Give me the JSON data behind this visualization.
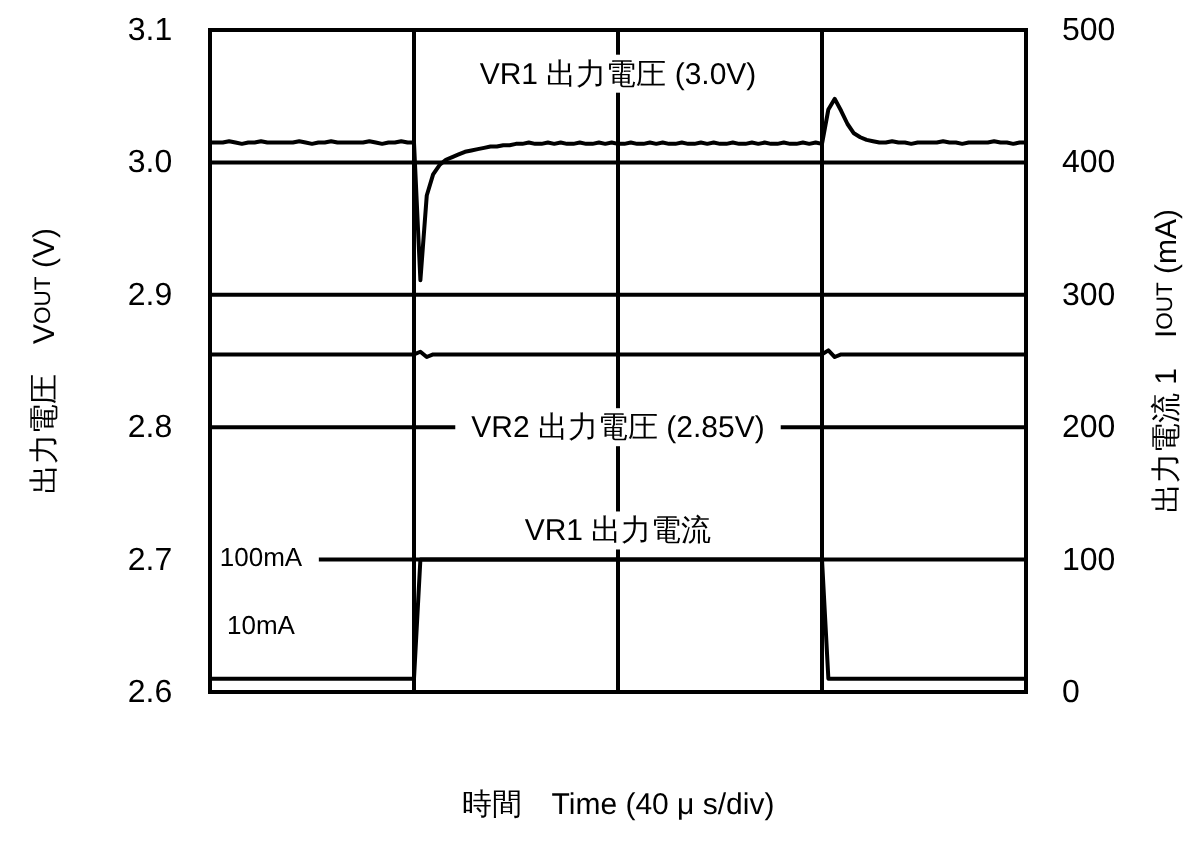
{
  "chart_data": {
    "type": "line",
    "xlabel": "時間　Time (40 μ s/div)",
    "ylabel": "出力電圧　V$_{OUT}$ (V)",
    "y2label": "出力電流 1　I$_{OUT}$ (mA)",
    "categories": [
      null,
      null,
      null,
      null,
      null,
      null,
      null,
      null,
      null,
      null,
      null,
      null,
      null,
      null,
      null,
      null,
      null,
      null,
      null,
      null,
      null,
      null,
      null,
      null,
      null,
      null,
      null,
      null,
      null,
      null,
      null,
      null,
      null,
      null,
      null,
      null,
      null,
      null,
      null,
      null,
      null,
      null,
      null,
      null,
      null,
      null,
      null,
      null,
      null,
      null,
      null,
      null,
      null,
      null,
      null,
      null,
      null,
      null,
      null,
      null,
      null,
      null,
      null,
      null,
      null,
      null,
      null,
      null,
      null,
      null,
      null,
      null,
      null,
      null,
      null,
      null,
      null,
      null,
      null,
      null,
      null,
      null,
      null,
      null,
      null,
      null,
      null,
      null,
      null,
      null,
      null,
      null,
      null,
      null,
      null,
      null,
      null,
      null,
      null,
      null,
      null,
      null,
      null,
      null,
      null,
      null,
      null,
      null,
      null,
      null,
      null,
      null,
      null,
      null,
      null,
      null,
      null,
      null,
      null,
      null,
      null,
      null,
      null,
      null,
      null,
      null,
      null,
      null,
      null
    ],
    "ylim": [
      2.6,
      3.1
    ],
    "yticks": [
      2.6,
      2.7,
      2.8,
      2.9,
      {
        "value": 3.0,
        "label": "3.0"
      },
      3.1
    ],
    "y2lim": [
      0,
      500
    ],
    "y2ticks": [
      0,
      100,
      200,
      300,
      400,
      500
    ],
    "grid": true,
    "annotations": [
      "VR1 出力電圧  (3.0V)",
      "VR2 出力電圧  (2.85V)",
      "VR1 出力電流",
      "100mA",
      "10mA"
    ],
    "series": [
      {
        "color": "#000000",
        "values": [
          3.015,
          3.015,
          3.015,
          3.016,
          3.015,
          3.014,
          3.015,
          3.015,
          3.016,
          3.015,
          3.015,
          3.015,
          3.015,
          3.015,
          3.016,
          3.015,
          3.014,
          3.015,
          3.015,
          3.016,
          3.015,
          3.015,
          3.015,
          3.015,
          3.015,
          3.016,
          3.015,
          3.014,
          3.015,
          3.015,
          3.016,
          3.015,
          3.015,
          2.911,
          2.975,
          2.991,
          2.998,
          3.002,
          3.004,
          3.006,
          3.008,
          3.009,
          3.01,
          3.011,
          3.012,
          3.012,
          3.013,
          3.013,
          3.014,
          3.014,
          3.015,
          3.014,
          3.014,
          3.015,
          3.014,
          3.015,
          3.014,
          3.014,
          3.015,
          3.014,
          3.014,
          3.015,
          3.014,
          3.015,
          3.014,
          3.014,
          3.015,
          3.014,
          3.014,
          3.015,
          3.014,
          3.015,
          3.014,
          3.014,
          3.015,
          3.014,
          3.014,
          3.015,
          3.014,
          3.015,
          3.014,
          3.014,
          3.015,
          3.014,
          3.014,
          3.015,
          3.014,
          3.015,
          3.014,
          3.014,
          3.015,
          3.014,
          3.014,
          3.015,
          3.014,
          3.015,
          3.014,
          3.04,
          3.048,
          3.039,
          3.029,
          3.022,
          3.019,
          3.017,
          3.016,
          3.015,
          3.015,
          3.016,
          3.015,
          3.015,
          3.014,
          3.015,
          3.015,
          3.015,
          3.015,
          3.016,
          3.015,
          3.015,
          3.014,
          3.015,
          3.015,
          3.015,
          3.015,
          3.016,
          3.015,
          3.015,
          3.014,
          3.015,
          3.015
        ]
      },
      {
        "color": "#000000",
        "values": [
          2.855,
          2.855,
          2.855,
          2.855,
          2.855,
          2.855,
          2.855,
          2.855,
          2.855,
          2.855,
          2.855,
          2.855,
          2.855,
          2.855,
          2.855,
          2.855,
          2.855,
          2.855,
          2.855,
          2.855,
          2.855,
          2.855,
          2.855,
          2.855,
          2.855,
          2.855,
          2.855,
          2.855,
          2.855,
          2.855,
          2.855,
          2.855,
          2.855,
          2.857,
          2.853,
          2.855,
          2.855,
          2.855,
          2.855,
          2.855,
          2.855,
          2.855,
          2.855,
          2.855,
          2.855,
          2.855,
          2.855,
          2.855,
          2.855,
          2.855,
          2.855,
          2.855,
          2.855,
          2.855,
          2.855,
          2.855,
          2.855,
          2.855,
          2.855,
          2.855,
          2.855,
          2.855,
          2.855,
          2.855,
          2.855,
          2.855,
          2.855,
          2.855,
          2.855,
          2.855,
          2.855,
          2.855,
          2.855,
          2.855,
          2.855,
          2.855,
          2.855,
          2.855,
          2.855,
          2.855,
          2.855,
          2.855,
          2.855,
          2.855,
          2.855,
          2.855,
          2.855,
          2.855,
          2.855,
          2.855,
          2.855,
          2.855,
          2.855,
          2.855,
          2.855,
          2.855,
          2.855,
          2.858,
          2.853,
          2.855,
          2.855,
          2.855,
          2.855,
          2.855,
          2.855,
          2.855,
          2.855,
          2.855,
          2.855,
          2.855,
          2.855,
          2.855,
          2.855,
          2.855,
          2.855,
          2.855,
          2.855,
          2.855,
          2.855,
          2.855,
          2.855,
          2.855,
          2.855,
          2.855,
          2.855,
          2.855,
          2.855,
          2.855,
          2.855
        ]
      },
      {
        "color": "#000000",
        "axis": "y2",
        "values": [
          10,
          10,
          10,
          10,
          10,
          10,
          10,
          10,
          10,
          10,
          10,
          10,
          10,
          10,
          10,
          10,
          10,
          10,
          10,
          10,
          10,
          10,
          10,
          10,
          10,
          10,
          10,
          10,
          10,
          10,
          10,
          10,
          10,
          100,
          100,
          100,
          100,
          100,
          100,
          100,
          100,
          100,
          100,
          100,
          100,
          100,
          100,
          100,
          100,
          100,
          100,
          100,
          100,
          100,
          100,
          100,
          100,
          100,
          100,
          100,
          100,
          100,
          100,
          100,
          100,
          100,
          100,
          100,
          100,
          100,
          100,
          100,
          100,
          100,
          100,
          100,
          100,
          100,
          100,
          100,
          100,
          100,
          100,
          100,
          100,
          100,
          100,
          100,
          100,
          100,
          100,
          100,
          100,
          100,
          100,
          100,
          100,
          10,
          10,
          10,
          10,
          10,
          10,
          10,
          10,
          10,
          10,
          10,
          10,
          10,
          10,
          10,
          10,
          10,
          10,
          10,
          10,
          10,
          10,
          10,
          10,
          10,
          10,
          10,
          10,
          10,
          10,
          10,
          10
        ]
      }
    ]
  }
}
